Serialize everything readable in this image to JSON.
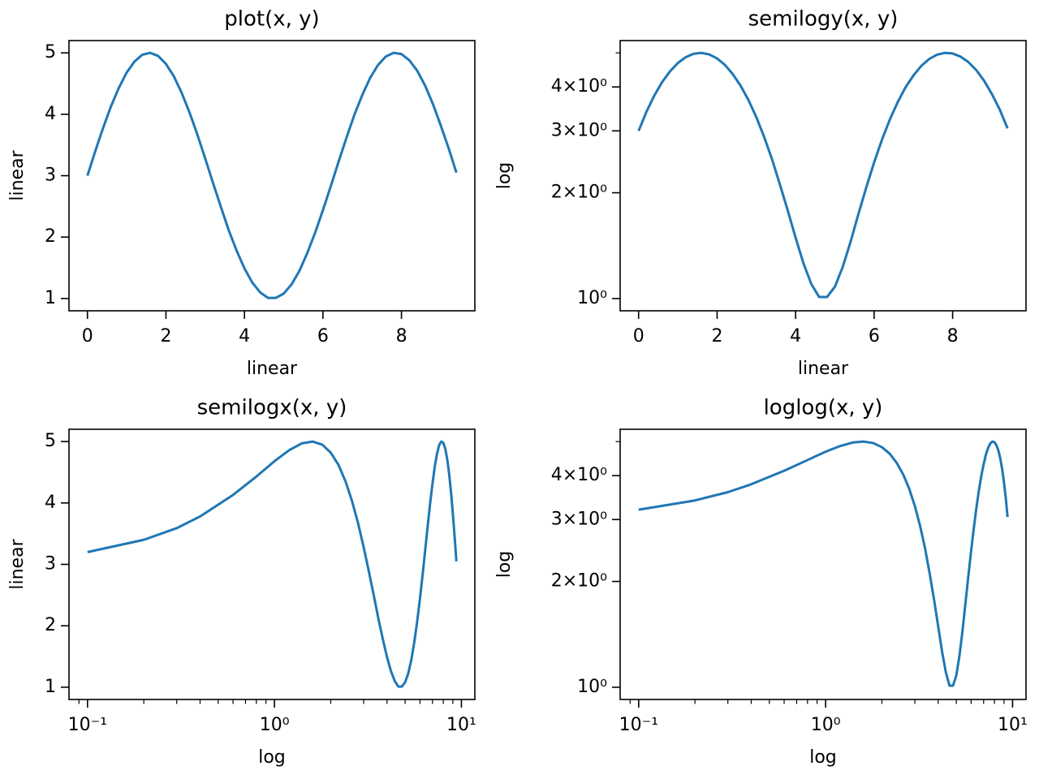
{
  "chart_data": [
    {
      "type": "line",
      "title": "plot(x, y)",
      "xlabel": "linear",
      "ylabel": "linear",
      "xscale": "linear",
      "yscale": "linear",
      "color": "#1f77b4",
      "x": [
        0,
        0.2,
        0.4,
        0.6,
        0.8,
        1.0,
        1.2,
        1.4,
        1.6,
        1.8,
        2.0,
        2.2,
        2.4,
        2.6,
        2.8,
        3.0,
        3.2,
        3.4,
        3.6,
        3.8,
        4.0,
        4.2,
        4.4,
        4.6,
        4.8,
        5.0,
        5.2,
        5.4,
        5.6,
        5.8,
        6.0,
        6.2,
        6.4,
        6.6,
        6.8,
        7.0,
        7.2,
        7.4,
        7.6,
        7.8,
        8.0,
        8.2,
        8.4,
        8.6,
        8.8,
        9.0,
        9.2,
        9.4
      ],
      "values": [
        3,
        3.4,
        3.78,
        4.13,
        4.43,
        4.68,
        4.86,
        4.97,
        5.0,
        4.95,
        4.82,
        4.62,
        4.35,
        4.03,
        3.67,
        3.28,
        2.88,
        2.49,
        2.11,
        1.78,
        1.49,
        1.26,
        1.1,
        1.01,
        1.01,
        1.08,
        1.23,
        1.45,
        1.74,
        2.07,
        2.44,
        2.83,
        3.23,
        3.62,
        3.99,
        4.31,
        4.59,
        4.8,
        4.94,
        5.0,
        4.98,
        4.88,
        4.71,
        4.47,
        4.17,
        3.82,
        3.45,
        3.05
      ],
      "xlim": [
        -0.47,
        9.87
      ],
      "ylim": [
        0.8,
        5.2
      ],
      "xticks": [
        0,
        2,
        4,
        6,
        8
      ],
      "yticks": [
        1,
        2,
        3,
        4,
        5
      ]
    },
    {
      "type": "line",
      "title": "semilogy(x, y)",
      "xlabel": "linear",
      "ylabel": "log",
      "xscale": "linear",
      "yscale": "log",
      "color": "#1f77b4",
      "x": [
        0,
        0.2,
        0.4,
        0.6,
        0.8,
        1.0,
        1.2,
        1.4,
        1.6,
        1.8,
        2.0,
        2.2,
        2.4,
        2.6,
        2.8,
        3.0,
        3.2,
        3.4,
        3.6,
        3.8,
        4.0,
        4.2,
        4.4,
        4.6,
        4.8,
        5.0,
        5.2,
        5.4,
        5.6,
        5.8,
        6.0,
        6.2,
        6.4,
        6.6,
        6.8,
        7.0,
        7.2,
        7.4,
        7.6,
        7.8,
        8.0,
        8.2,
        8.4,
        8.6,
        8.8,
        9.0,
        9.2,
        9.4
      ],
      "values": [
        3,
        3.4,
        3.78,
        4.13,
        4.43,
        4.68,
        4.86,
        4.97,
        5.0,
        4.95,
        4.82,
        4.62,
        4.35,
        4.03,
        3.67,
        3.28,
        2.88,
        2.49,
        2.11,
        1.78,
        1.49,
        1.26,
        1.1,
        1.01,
        1.01,
        1.08,
        1.23,
        1.45,
        1.74,
        2.07,
        2.44,
        2.83,
        3.23,
        3.62,
        3.99,
        4.31,
        4.59,
        4.8,
        4.94,
        5.0,
        4.98,
        4.88,
        4.71,
        4.47,
        4.17,
        3.82,
        3.45,
        3.05
      ],
      "xlim": [
        -0.47,
        9.87
      ],
      "ylim": [
        0.923,
        5.42
      ],
      "xticks": [
        0,
        2,
        4,
        6,
        8
      ],
      "yticks": [
        {
          "value": 1,
          "label": "10⁰"
        },
        {
          "value": 2,
          "label": "2×10⁰"
        },
        {
          "value": 3,
          "label": "3×10⁰"
        },
        {
          "value": 4,
          "label": "4×10⁰"
        }
      ],
      "yminorticks": [
        5
      ]
    },
    {
      "type": "line",
      "title": "semilogx(x, y)",
      "xlabel": "log",
      "ylabel": "linear",
      "xscale": "log",
      "yscale": "linear",
      "color": "#1f77b4",
      "x": [
        0.1,
        0.2,
        0.3,
        0.4,
        0.6,
        0.8,
        1.0,
        1.2,
        1.4,
        1.6,
        1.8,
        2.0,
        2.2,
        2.4,
        2.6,
        2.8,
        3.0,
        3.2,
        3.4,
        3.6,
        3.8,
        4.0,
        4.2,
        4.4,
        4.6,
        4.8,
        5.0,
        5.2,
        5.4,
        5.6,
        5.8,
        6.0,
        6.2,
        6.4,
        6.6,
        6.8,
        7.0,
        7.2,
        7.4,
        7.6,
        7.8,
        8.0,
        8.2,
        8.4,
        8.6,
        8.8,
        9.0,
        9.2,
        9.4
      ],
      "values": [
        3.2,
        3.4,
        3.59,
        3.78,
        4.13,
        4.43,
        4.68,
        4.86,
        4.97,
        5.0,
        4.95,
        4.82,
        4.62,
        4.35,
        4.03,
        3.67,
        3.28,
        2.88,
        2.49,
        2.11,
        1.78,
        1.49,
        1.26,
        1.1,
        1.01,
        1.01,
        1.08,
        1.23,
        1.45,
        1.74,
        2.07,
        2.44,
        2.83,
        3.23,
        3.62,
        3.99,
        4.31,
        4.59,
        4.8,
        4.94,
        5.0,
        4.98,
        4.88,
        4.71,
        4.47,
        4.17,
        3.82,
        3.45,
        3.05
      ],
      "xlim": [
        0.0796,
        11.8
      ],
      "ylim": [
        0.8,
        5.2
      ],
      "xticks": [
        {
          "value": 0.1,
          "label": "10⁻¹"
        },
        {
          "value": 1,
          "label": "10⁰"
        },
        {
          "value": 10,
          "label": "10¹"
        }
      ],
      "xminorticks": [
        0.09,
        0.2,
        0.3,
        0.4,
        0.5,
        0.6,
        0.7,
        0.8,
        0.9,
        2,
        3,
        4,
        5,
        6,
        7,
        8,
        9
      ],
      "yticks": [
        1,
        2,
        3,
        4,
        5
      ]
    },
    {
      "type": "line",
      "title": "loglog(x, y)",
      "xlabel": "log",
      "ylabel": "log",
      "xscale": "log",
      "yscale": "log",
      "color": "#1f77b4",
      "x": [
        0.1,
        0.2,
        0.3,
        0.4,
        0.6,
        0.8,
        1.0,
        1.2,
        1.4,
        1.6,
        1.8,
        2.0,
        2.2,
        2.4,
        2.6,
        2.8,
        3.0,
        3.2,
        3.4,
        3.6,
        3.8,
        4.0,
        4.2,
        4.4,
        4.6,
        4.8,
        5.0,
        5.2,
        5.4,
        5.6,
        5.8,
        6.0,
        6.2,
        6.4,
        6.6,
        6.8,
        7.0,
        7.2,
        7.4,
        7.6,
        7.8,
        8.0,
        8.2,
        8.4,
        8.6,
        8.8,
        9.0,
        9.2,
        9.4
      ],
      "values": [
        3.2,
        3.4,
        3.59,
        3.78,
        4.13,
        4.43,
        4.68,
        4.86,
        4.97,
        5.0,
        4.95,
        4.82,
        4.62,
        4.35,
        4.03,
        3.67,
        3.28,
        2.88,
        2.49,
        2.11,
        1.78,
        1.49,
        1.26,
        1.1,
        1.01,
        1.01,
        1.08,
        1.23,
        1.45,
        1.74,
        2.07,
        2.44,
        2.83,
        3.23,
        3.62,
        3.99,
        4.31,
        4.59,
        4.8,
        4.94,
        5.0,
        4.98,
        4.88,
        4.71,
        4.47,
        4.17,
        3.82,
        3.45,
        3.05
      ],
      "xlim": [
        0.0796,
        11.8
      ],
      "ylim": [
        0.923,
        5.42
      ],
      "xticks": [
        {
          "value": 0.1,
          "label": "10⁻¹"
        },
        {
          "value": 1,
          "label": "10⁰"
        },
        {
          "value": 10,
          "label": "10¹"
        }
      ],
      "xminorticks": [
        0.09,
        0.2,
        0.3,
        0.4,
        0.5,
        0.6,
        0.7,
        0.8,
        0.9,
        2,
        3,
        4,
        5,
        6,
        7,
        8,
        9
      ],
      "yticks": [
        {
          "value": 1,
          "label": "10⁰"
        },
        {
          "value": 2,
          "label": "2×10⁰"
        },
        {
          "value": 3,
          "label": "3×10⁰"
        },
        {
          "value": 4,
          "label": "4×10⁰"
        }
      ],
      "yminorticks": [
        5
      ]
    }
  ]
}
